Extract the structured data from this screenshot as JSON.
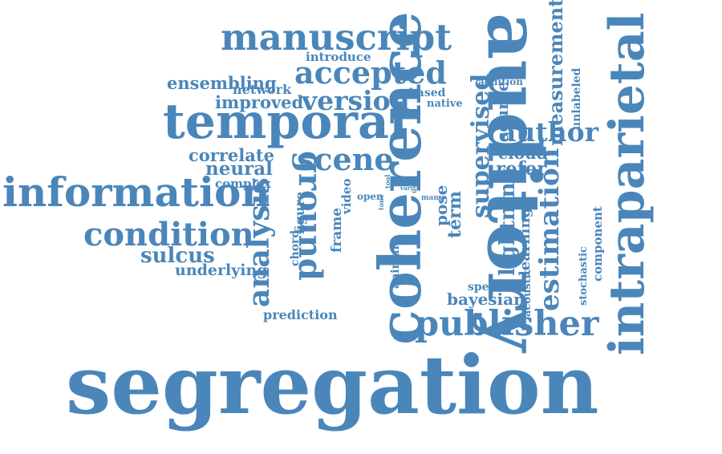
{
  "word_color": "#4a86ba",
  "background_color": "#ffffff",
  "words": [
    "segregation",
    "auditory",
    "intraparietal",
    "coherence",
    "temporal",
    "information",
    "manuscript",
    "publisher",
    "accepted",
    "condition",
    "version",
    "analysis",
    "ground",
    "scene",
    "author",
    "estimation",
    "sulcus",
    "supervised",
    "ensembling",
    "measurement",
    "improved",
    "network",
    "introduce",
    "correlate",
    "neural",
    "complex",
    "underlying",
    "prediction",
    "source",
    "cloud",
    "refer",
    "lightning",
    "learning",
    "bayesian",
    "spectral",
    "acoustic",
    "component",
    "stochastic",
    "unlabeled",
    "addition",
    "based",
    "native",
    "figure",
    "chord",
    "frame",
    "video",
    "open",
    "tool",
    "time",
    "vary",
    "use",
    "tone",
    "many",
    "pose",
    "term",
    "animal"
  ]
}
